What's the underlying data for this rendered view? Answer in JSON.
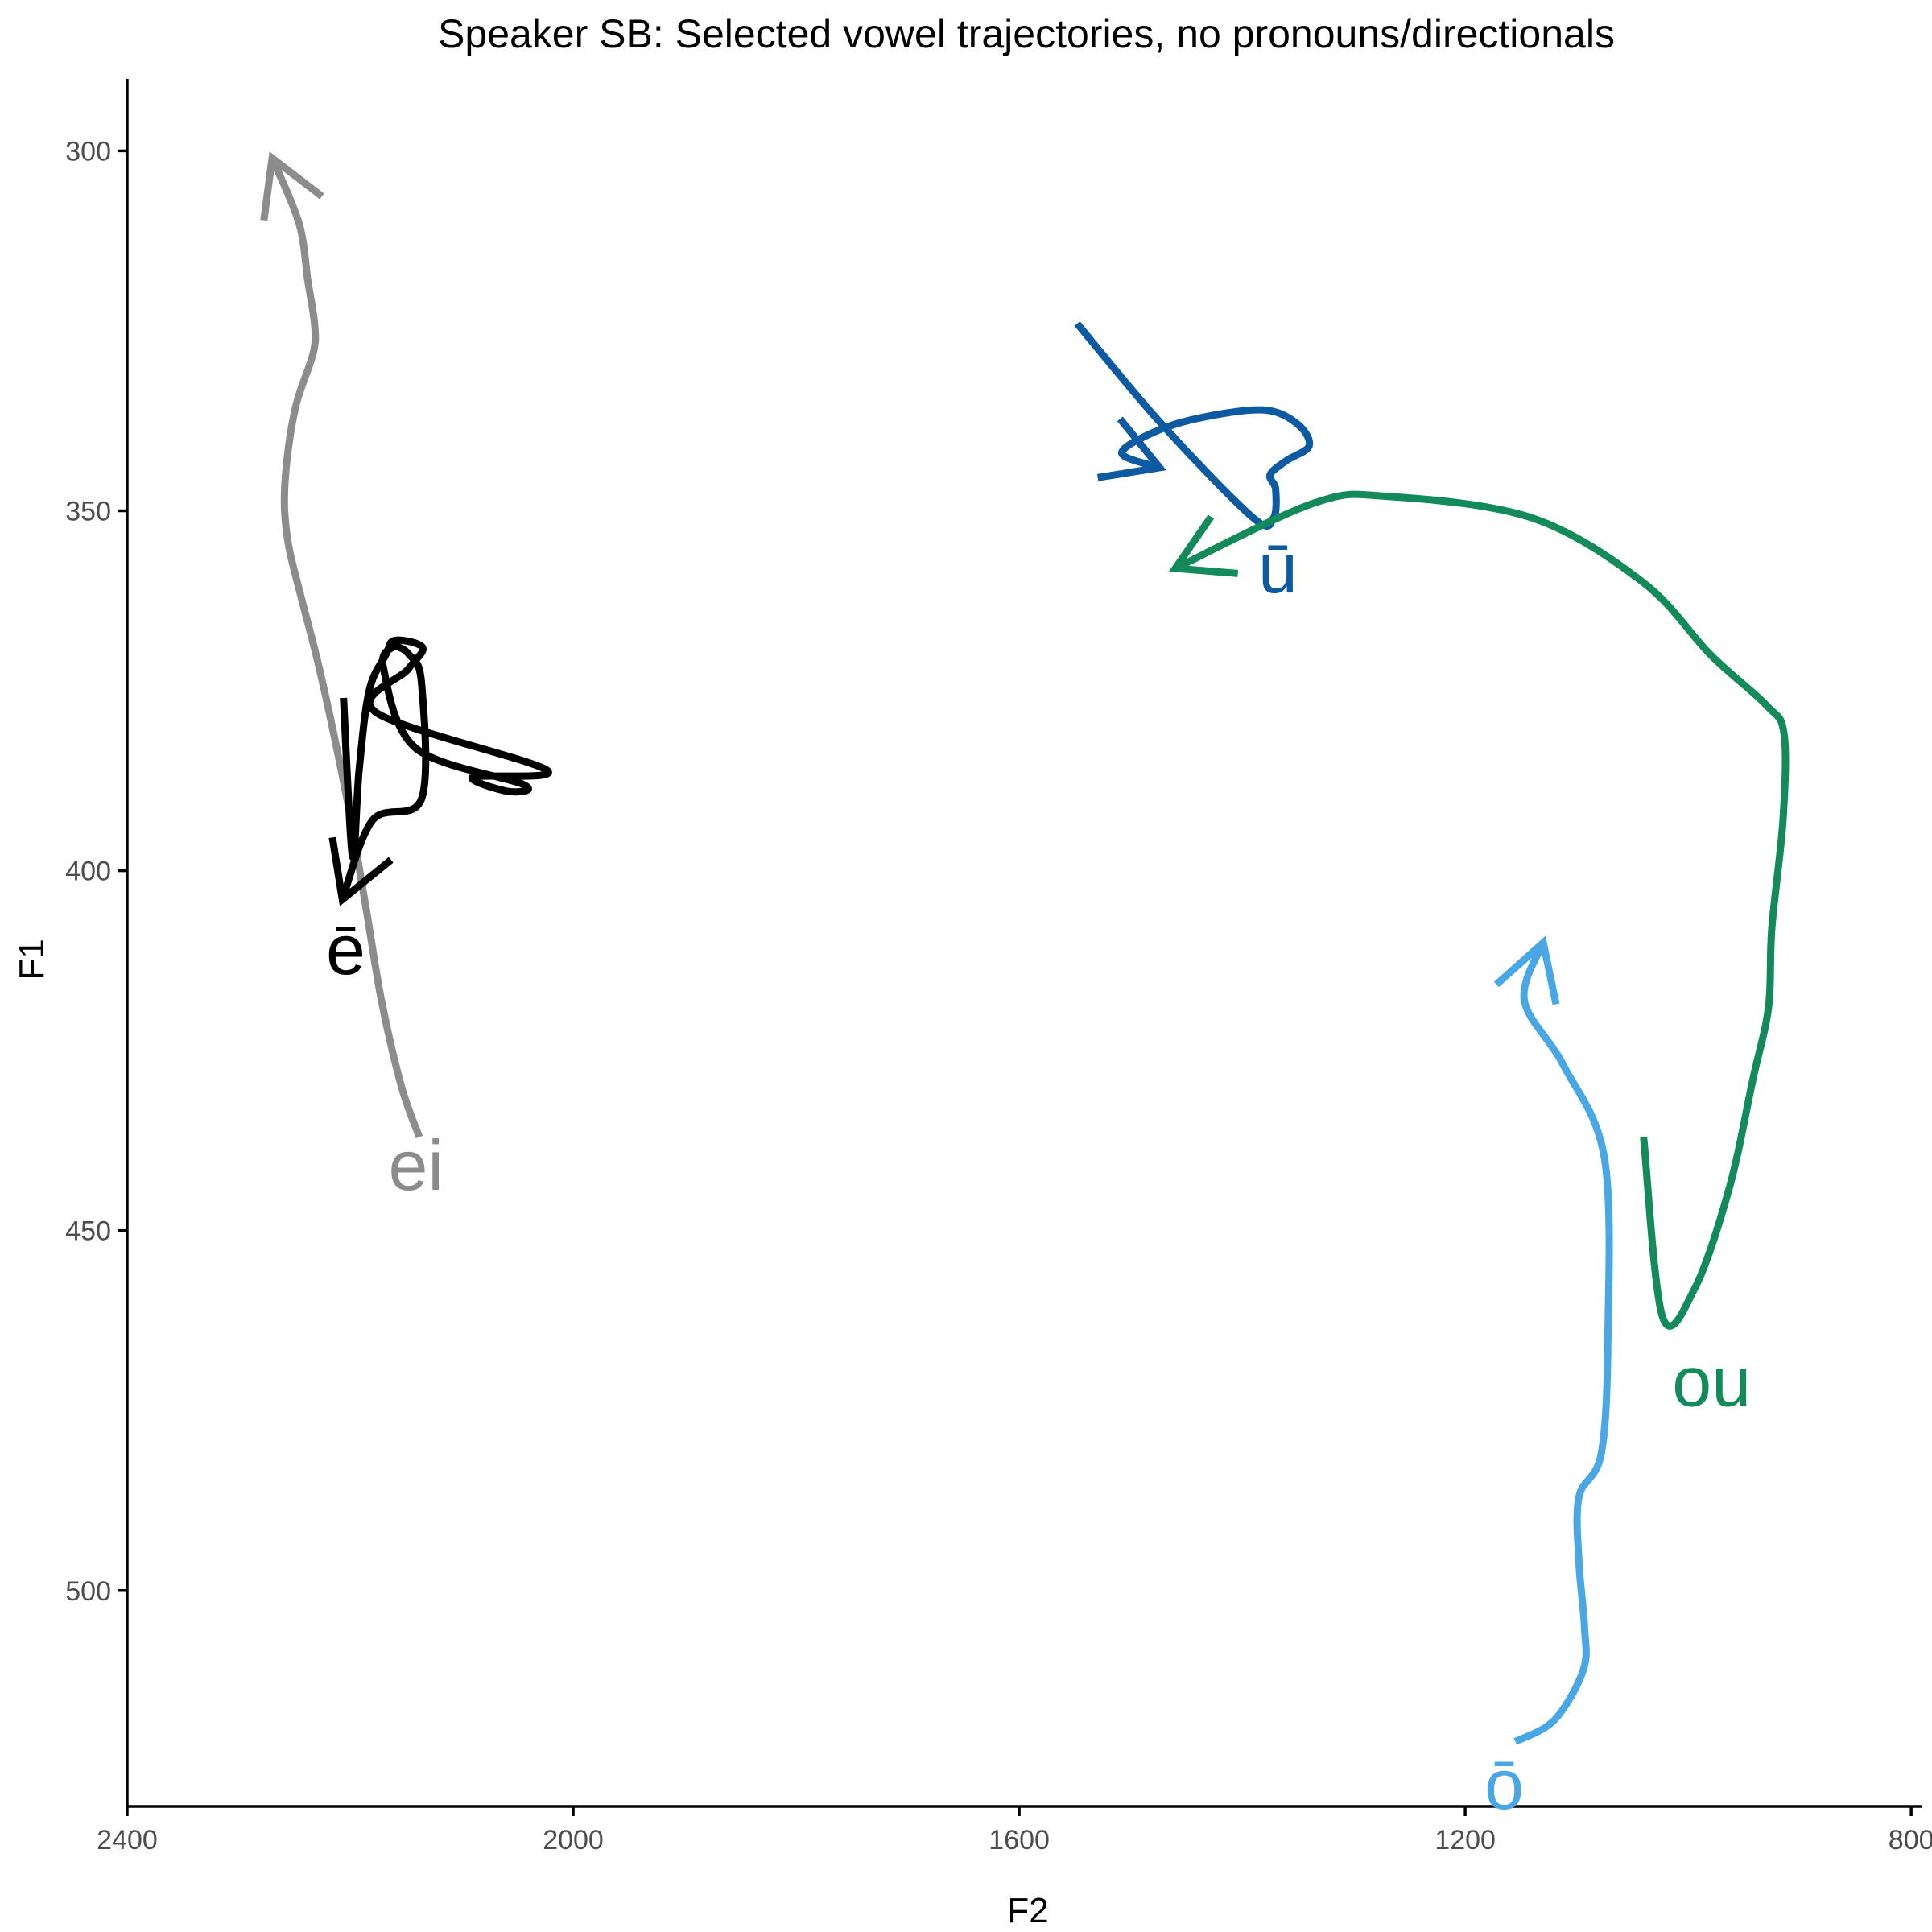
{
  "chart_data": {
    "type": "line",
    "title": "Speaker SB: Selected vowel trajectories, no pronouns/directionals",
    "xlabel": "F2",
    "ylabel": "F1",
    "x_reversed": true,
    "y_reversed": true,
    "xlim": [
      2400,
      790
    ],
    "ylim": [
      290,
      530
    ],
    "x_ticks": [
      2400,
      2000,
      1600,
      1200,
      800
    ],
    "y_ticks": [
      300,
      350,
      400,
      450,
      500
    ],
    "grid": false,
    "series": [
      {
        "name": "ei",
        "color": "#8c8c8c",
        "label_pos": [
          2141,
          441
        ],
        "points": [
          [
            2138,
            437
          ],
          [
            2154,
            430
          ],
          [
            2172,
            418
          ],
          [
            2186,
            405
          ],
          [
            2203,
            390
          ],
          [
            2226,
            373
          ],
          [
            2244,
            362
          ],
          [
            2255,
            355
          ],
          [
            2259,
            349
          ],
          [
            2256,
            342
          ],
          [
            2248,
            335
          ],
          [
            2233,
            328
          ],
          [
            2232,
            324
          ],
          [
            2238,
            318
          ],
          [
            2246,
            310
          ],
          [
            2270,
            301
          ]
        ]
      },
      {
        "name": "ē",
        "color": "#000000",
        "label_pos": [
          2204,
          411
        ],
        "points": [
          [
            2206,
            376
          ],
          [
            2198,
            398
          ],
          [
            2192,
            386
          ],
          [
            2183,
            375
          ],
          [
            2168,
            370
          ],
          [
            2160,
            368
          ],
          [
            2135,
            369
          ],
          [
            2148,
            372
          ],
          [
            2177,
            378
          ],
          [
            2024,
            386
          ],
          [
            2090,
            387
          ],
          [
            2058,
            389
          ],
          [
            2045,
            388
          ],
          [
            2141,
            383
          ],
          [
            2170,
            372
          ],
          [
            2162,
            369
          ],
          [
            2147,
            370
          ],
          [
            2136,
            374
          ],
          [
            2136,
            390
          ],
          [
            2180,
            393
          ],
          [
            2207,
            404
          ]
        ]
      },
      {
        "name": "ū",
        "color": "#0b5aa2",
        "label_pos": [
          1368,
          358
        ],
        "points": [
          [
            1548,
            324
          ],
          [
            1472,
            338
          ],
          [
            1390,
            351
          ],
          [
            1372,
            351
          ],
          [
            1370,
            347
          ],
          [
            1375,
            345
          ],
          [
            1360,
            343
          ],
          [
            1340,
            341
          ],
          [
            1350,
            338
          ],
          [
            1380,
            336
          ],
          [
            1435,
            337
          ],
          [
            1478,
            339
          ],
          [
            1508,
            342
          ],
          [
            1474,
            344
          ]
        ]
      },
      {
        "name": "ou",
        "color": "#128a5a",
        "label_pos": [
          979,
          471
        ],
        "points": [
          [
            1040,
            437
          ],
          [
            1023,
            462
          ],
          [
            994,
            458
          ],
          [
            963,
            444
          ],
          [
            942,
            429
          ],
          [
            928,
            419
          ],
          [
            925,
            408
          ],
          [
            915,
            393
          ],
          [
            914,
            381
          ],
          [
            930,
            377
          ],
          [
            980,
            370
          ],
          [
            1040,
            360
          ],
          [
            1140,
            351
          ],
          [
            1270,
            348
          ],
          [
            1337,
            349
          ],
          [
            1460,
            358
          ]
        ]
      },
      {
        "name": "ō",
        "color": "#49a7e5",
        "label_pos": [
          1165,
          527
        ],
        "points": [
          [
            1155,
            521
          ],
          [
            1120,
            518
          ],
          [
            1094,
            511
          ],
          [
            1093,
            505
          ],
          [
            1098,
            496
          ],
          [
            1098,
            487
          ],
          [
            1078,
            481
          ],
          [
            1072,
            465
          ],
          [
            1075,
            440
          ],
          [
            1112,
            427
          ],
          [
            1147,
            418
          ],
          [
            1130,
            410
          ]
        ]
      }
    ]
  }
}
